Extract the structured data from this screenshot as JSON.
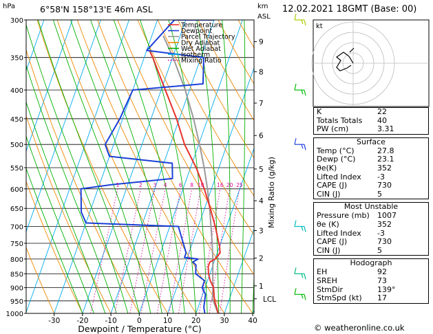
{
  "header": {
    "location": "6°58'N 158°13'E 46m ASL",
    "datetime": "12.02.2021 18GMT (Base: 00)",
    "hpa_label": "hPa",
    "km_label": "km",
    "asl_label": "ASL"
  },
  "chart_data": {
    "type": "skew-t",
    "xlabel": "Dewpoint / Temperature (°C)",
    "right_label": "Mixing Ratio (g/kg)",
    "pressure_ticks": [
      300,
      350,
      400,
      450,
      500,
      550,
      600,
      650,
      700,
      750,
      800,
      850,
      900,
      950,
      1000
    ],
    "temp_ticks": [
      -30,
      -20,
      -10,
      0,
      10,
      20,
      30,
      40
    ],
    "km_ticks": [
      {
        "label": "9",
        "p": 328
      },
      {
        "label": "8",
        "p": 371
      },
      {
        "label": "7",
        "p": 422
      },
      {
        "label": "6",
        "p": 482
      },
      {
        "label": "5",
        "p": 553
      },
      {
        "label": "4",
        "p": 630
      },
      {
        "label": "3",
        "p": 712
      },
      {
        "label": "2",
        "p": 797
      },
      {
        "label": "1",
        "p": 893
      },
      {
        "label": "LCL",
        "p": 942
      }
    ],
    "mixing_ratio_labels": [
      "1",
      "2",
      "3",
      "4",
      "6",
      "8",
      "10",
      "16",
      "20",
      "25"
    ],
    "legend": [
      "Temperature",
      "Dewpoint",
      "Parcel Trajectory",
      "Dry Adiabat",
      "Wet Adiabat",
      "Isotherm",
      "Mixing Ratio"
    ],
    "colors": {
      "temperature": "#e8302a",
      "dewpoint": "#1a3fd6",
      "parcel": "#999999",
      "dry_adiabat": "#ee8800",
      "wet_adiabat": "#00b000",
      "isotherm": "#00aaee",
      "mixing_ratio": "#dd0099"
    },
    "temperature": [
      [
        1000,
        27.8
      ],
      [
        975,
        26.5
      ],
      [
        950,
        25
      ],
      [
        925,
        24
      ],
      [
        900,
        23
      ],
      [
        875,
        21
      ],
      [
        850,
        19.5
      ],
      [
        825,
        18.5
      ],
      [
        810,
        18.5
      ],
      [
        800,
        20
      ],
      [
        780,
        21
      ],
      [
        760,
        20
      ],
      [
        700,
        16
      ],
      [
        650,
        12
      ],
      [
        600,
        7.5
      ],
      [
        550,
        2
      ],
      [
        500,
        -5
      ],
      [
        450,
        -11
      ],
      [
        400,
        -18.5
      ],
      [
        350,
        -27
      ],
      [
        340,
        -29
      ]
    ],
    "dewpoint": [
      [
        1000,
        23.1
      ],
      [
        975,
        22
      ],
      [
        950,
        21.5
      ],
      [
        925,
        21
      ],
      [
        900,
        19
      ],
      [
        875,
        19
      ],
      [
        850,
        15
      ],
      [
        820,
        14
      ],
      [
        810,
        12.5
      ],
      [
        800,
        14
      ],
      [
        795,
        9
      ],
      [
        780,
        9
      ],
      [
        700,
        3
      ],
      [
        690,
        -30
      ],
      [
        660,
        -33
      ],
      [
        600,
        -36
      ],
      [
        590,
        -26
      ],
      [
        575,
        -5
      ],
      [
        540,
        -7
      ],
      [
        525,
        -30
      ],
      [
        500,
        -33
      ],
      [
        450,
        -31
      ],
      [
        400,
        -30
      ],
      [
        390,
        -6
      ],
      [
        350,
        -9
      ],
      [
        340,
        -30
      ],
      [
        300,
        -24
      ],
      [
        300,
        -10
      ]
    ],
    "parcel": [
      [
        1000,
        27.8
      ],
      [
        942,
        24
      ],
      [
        900,
        22.8
      ],
      [
        850,
        21
      ],
      [
        800,
        19.2
      ],
      [
        750,
        17
      ],
      [
        700,
        14.5
      ],
      [
        650,
        11.8
      ],
      [
        600,
        8.6
      ],
      [
        550,
        4.8
      ],
      [
        500,
        0.3
      ],
      [
        450,
        -5
      ],
      [
        400,
        -11.5
      ],
      [
        350,
        -19.8
      ],
      [
        320,
        -26
      ]
    ],
    "hodograph": {
      "label": "kt",
      "rings": [
        10,
        20,
        30,
        40
      ]
    },
    "wind_colors": [
      "#aacc00",
      "#00bb00",
      "#2244dd",
      "#00bbbb",
      "#00bb88",
      "#00bb00"
    ]
  },
  "indices": {
    "basic": [
      {
        "label": "K",
        "value": "22"
      },
      {
        "label": "Totals Totals",
        "value": "40"
      },
      {
        "label": "PW (cm)",
        "value": "3.31"
      }
    ],
    "surface_title": "Surface",
    "surface": [
      {
        "label": "Temp (°C)",
        "value": "27.8"
      },
      {
        "label": "Dewp (°C)",
        "value": "23.1"
      },
      {
        "label": "θe(K)",
        "value": "352"
      },
      {
        "label": "Lifted Index",
        "value": "-3"
      },
      {
        "label": "CAPE (J)",
        "value": "730"
      },
      {
        "label": "CIN (J)",
        "value": "5"
      }
    ],
    "unstable_title": "Most Unstable",
    "unstable": [
      {
        "label": "Pressure (mb)",
        "value": "1007"
      },
      {
        "label": "θe (K)",
        "value": "352"
      },
      {
        "label": "Lifted Index",
        "value": "-3"
      },
      {
        "label": "CAPE (J)",
        "value": "730"
      },
      {
        "label": "CIN (J)",
        "value": "5"
      }
    ],
    "hodo_title": "Hodograph",
    "hodo": [
      {
        "label": "EH",
        "value": "92"
      },
      {
        "label": "SREH",
        "value": "73"
      },
      {
        "label": "StmDir",
        "value": "139°"
      },
      {
        "label": "StmSpd (kt)",
        "value": "17"
      }
    ]
  },
  "copyright": "© weatheronline.co.uk"
}
